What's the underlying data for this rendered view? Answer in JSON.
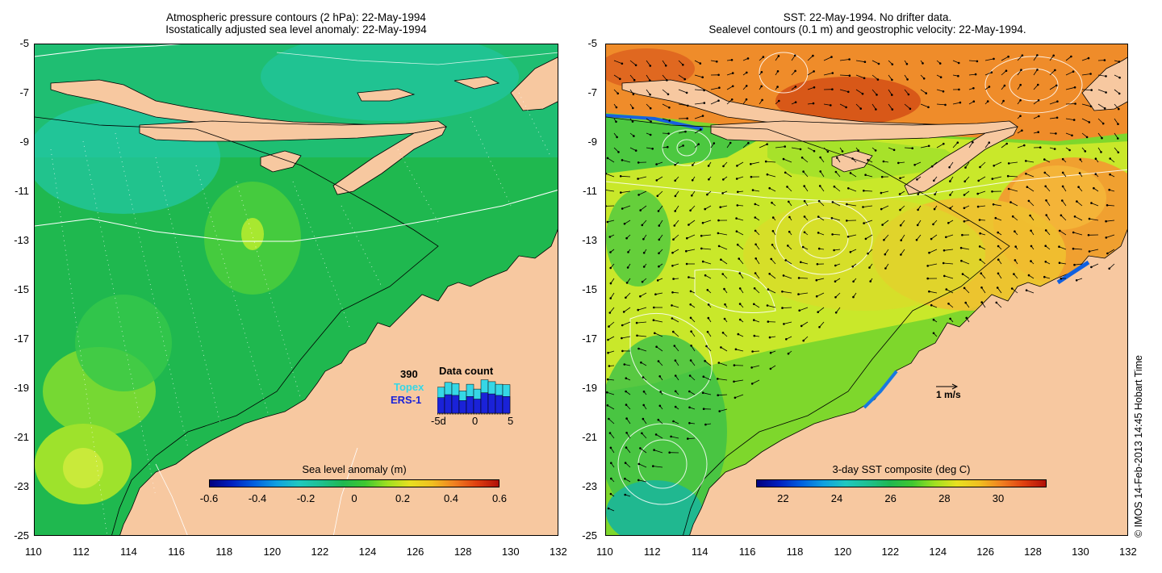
{
  "left_panel": {
    "title_line1": "Atmospheric pressure contours (2 hPa): 22-May-1994",
    "title_line2": "Isostatically adjusted sea level anomaly: 22-May-1994",
    "colorbar": {
      "label": "Sea level anomaly (m)",
      "ticks": [
        "-0.6",
        "-0.4",
        "-0.2",
        "0",
        "0.2",
        "0.4",
        "0.6"
      ]
    },
    "data_count": {
      "title": "Data count",
      "count": "390",
      "sat1": "Topex",
      "sat2": "ERS-1",
      "axis_ticks": [
        "-5d",
        "0",
        "5"
      ],
      "bars_total": [
        0.7,
        0.83,
        0.8,
        0.6,
        0.78,
        0.65,
        0.9,
        0.85,
        0.78,
        0.77
      ],
      "bars_ers": [
        0.42,
        0.5,
        0.48,
        0.34,
        0.45,
        0.38,
        0.55,
        0.52,
        0.48,
        0.45
      ]
    }
  },
  "right_panel": {
    "title_line1": "SST: 22-May-1994. No drifter data.",
    "title_line2": "Sealevel contours (0.1 m) and geostrophic velocity: 22-May-1994.",
    "colorbar": {
      "label": "3-day SST composite (deg C)",
      "ticks": [
        "22",
        "24",
        "26",
        "28",
        "30"
      ]
    },
    "velocity_scale": "1 m/s"
  },
  "axes": {
    "x_ticks": [
      "110",
      "112",
      "114",
      "116",
      "118",
      "120",
      "122",
      "124",
      "126",
      "128",
      "130",
      "132"
    ],
    "y_ticks": [
      "-5",
      "-7",
      "-9",
      "-11",
      "-13",
      "-15",
      "-17",
      "-19",
      "-21",
      "-23",
      "-25"
    ],
    "lon_range": [
      110,
      132
    ],
    "lat_range": [
      -25,
      -5
    ]
  },
  "colors": {
    "land": "#f7c8a0",
    "ocean_green": "#1fb84f",
    "ocean_teal": "#1ec18e",
    "sst_orange": "#f29a2e",
    "sst_yellow": "#c8e82a"
  },
  "copyright": "© IMOS 14-Feb-2013 14:45 Hobart Time"
}
